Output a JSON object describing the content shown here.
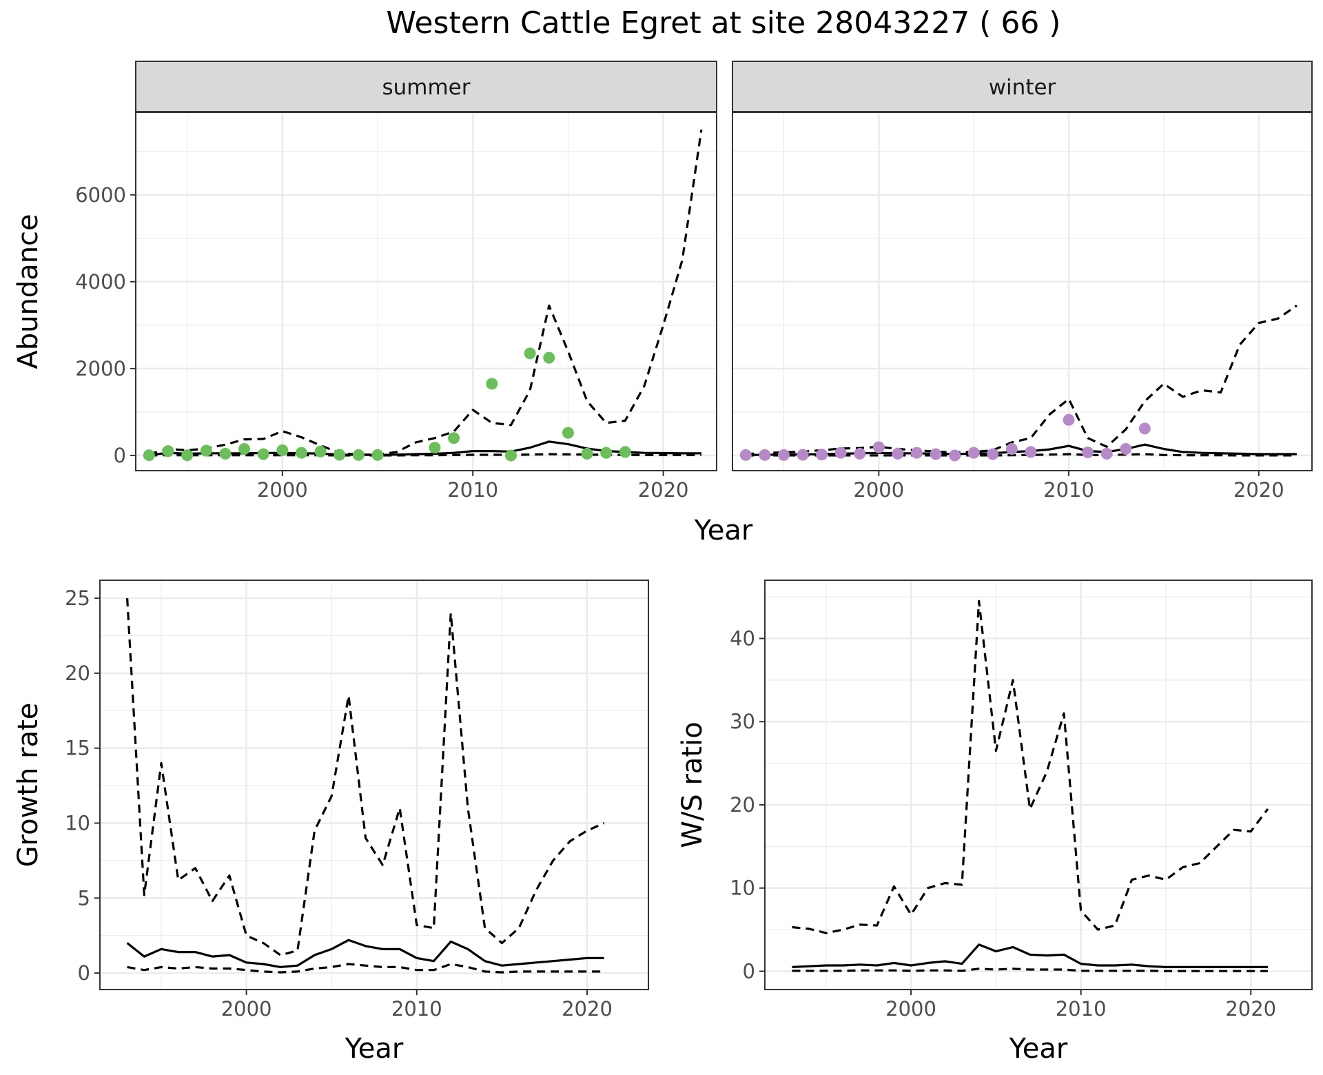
{
  "title": "Western Cattle Egret at site 28043227 ( 66 )",
  "colors": {
    "summer_points": "#6bbf59",
    "winter_points": "#b68ac9",
    "line": "#000000",
    "strip_fill": "#d9d9d9",
    "grid": "#ebebeb"
  },
  "chart_data": [
    {
      "id": "abundance",
      "type": "line",
      "facets": [
        "summer",
        "winter"
      ],
      "xlabel": "Year",
      "ylabel": "Abundance",
      "xlim": [
        1992.3,
        2022.8
      ],
      "ylim": [
        -350,
        7900
      ],
      "xticks": [
        2000,
        2010,
        2020
      ],
      "yticks": [
        0,
        2000,
        4000,
        6000
      ],
      "grid": true,
      "panels": [
        {
          "facet": "summer",
          "point_color": "#6bbf59",
          "points": {
            "x": [
              1993,
              1994,
              1995,
              1996,
              1997,
              1998,
              1999,
              2000,
              2001,
              2002,
              2003,
              2004,
              2005,
              2008,
              2009,
              2011,
              2012,
              2013,
              2014,
              2015,
              2016,
              2017,
              2018
            ],
            "y": [
              5,
              100,
              5,
              110,
              40,
              150,
              30,
              120,
              60,
              90,
              15,
              10,
              10,
              180,
              400,
              1650,
              0,
              2350,
              2250,
              520,
              40,
              60,
              80
            ]
          },
          "series": [
            {
              "style": "solid",
              "x": [
                1993,
                1994,
                1995,
                1996,
                1997,
                1998,
                1999,
                2000,
                2001,
                2002,
                2003,
                2004,
                2005,
                2006,
                2007,
                2008,
                2009,
                2010,
                2011,
                2012,
                2013,
                2014,
                2015,
                2016,
                2017,
                2018,
                2019,
                2020,
                2021,
                2022
              ],
              "y": [
                10,
                60,
                40,
                50,
                50,
                50,
                55,
                60,
                50,
                45,
                20,
                15,
                10,
                20,
                30,
                40,
                60,
                100,
                100,
                90,
                180,
                320,
                260,
                160,
                100,
                80,
                60,
                55,
                50,
                50
              ]
            },
            {
              "style": "dashed",
              "x": [
                1993,
                1994,
                1995,
                1996,
                1997,
                1998,
                1999,
                2000,
                2001,
                2002,
                2003,
                2004,
                2005,
                2006,
                2007,
                2008,
                2009,
                2010,
                2011,
                2012,
                2013,
                2014,
                2015,
                2016,
                2017,
                2018,
                2019,
                2020,
                2021,
                2022
              ],
              "y": [
                30,
                150,
                120,
                160,
                250,
                370,
                380,
                560,
                420,
                230,
                60,
                20,
                20,
                80,
                300,
                400,
                550,
                1050,
                750,
                700,
                1500,
                3450,
                2400,
                1250,
                750,
                800,
                1600,
                3000,
                4500,
                7500
              ]
            },
            {
              "style": "dashed",
              "x": [
                1993,
                1994,
                1995,
                1996,
                1997,
                1998,
                1999,
                2000,
                2001,
                2002,
                2003,
                2004,
                2005,
                2006,
                2007,
                2008,
                2009,
                2010,
                2011,
                2012,
                2013,
                2014,
                2015,
                2016,
                2017,
                2018,
                2019,
                2020,
                2021,
                2022
              ],
              "y": [
                0,
                5,
                5,
                5,
                5,
                5,
                5,
                5,
                5,
                5,
                0,
                0,
                0,
                0,
                5,
                5,
                10,
                15,
                15,
                15,
                20,
                30,
                25,
                20,
                15,
                15,
                10,
                10,
                10,
                10
              ]
            }
          ]
        },
        {
          "facet": "winter",
          "point_color": "#b68ac9",
          "points": {
            "x": [
              1993,
              1994,
              1995,
              1996,
              1997,
              1998,
              1999,
              2000,
              2001,
              2002,
              2003,
              2004,
              2005,
              2006,
              2007,
              2008,
              2010,
              2011,
              2012,
              2013,
              2014
            ],
            "y": [
              10,
              10,
              10,
              15,
              20,
              60,
              40,
              190,
              40,
              60,
              30,
              0,
              60,
              30,
              150,
              80,
              820,
              70,
              40,
              150,
              620
            ]
          },
          "series": [
            {
              "style": "solid",
              "x": [
                1993,
                1994,
                1995,
                1996,
                1997,
                1998,
                1999,
                2000,
                2001,
                2002,
                2003,
                2004,
                2005,
                2006,
                2007,
                2008,
                2009,
                2010,
                2011,
                2012,
                2013,
                2014,
                2015,
                2016,
                2017,
                2018,
                2019,
                2020,
                2021,
                2022
              ],
              "y": [
                10,
                15,
                20,
                25,
                30,
                40,
                50,
                60,
                50,
                50,
                40,
                35,
                40,
                50,
                80,
                100,
                140,
                220,
                100,
                80,
                150,
                250,
                150,
                80,
                60,
                50,
                40,
                30,
                30,
                30
              ]
            },
            {
              "style": "dashed",
              "x": [
                1993,
                1994,
                1995,
                1996,
                1997,
                1998,
                1999,
                2000,
                2001,
                2002,
                2003,
                2004,
                2005,
                2006,
                2007,
                2008,
                2009,
                2010,
                2011,
                2012,
                2013,
                2014,
                2015,
                2016,
                2017,
                2018,
                2019,
                2020,
                2021,
                2022
              ],
              "y": [
                30,
                60,
                70,
                90,
                120,
                160,
                170,
                200,
                150,
                120,
                90,
                70,
                80,
                120,
                300,
                400,
                950,
                1300,
                400,
                200,
                600,
                1250,
                1650,
                1350,
                1500,
                1450,
                2550,
                3050,
                3150,
                3450
              ]
            },
            {
              "style": "dashed",
              "x": [
                1993,
                1994,
                1995,
                1996,
                1997,
                1998,
                1999,
                2000,
                2001,
                2002,
                2003,
                2004,
                2005,
                2006,
                2007,
                2008,
                2009,
                2010,
                2011,
                2012,
                2013,
                2014,
                2015,
                2016,
                2017,
                2018,
                2019,
                2020,
                2021,
                2022
              ],
              "y": [
                0,
                0,
                0,
                0,
                0,
                0,
                0,
                0,
                0,
                0,
                0,
                0,
                0,
                0,
                5,
                10,
                20,
                30,
                10,
                10,
                20,
                30,
                10,
                5,
                5,
                5,
                0,
                0,
                0,
                0
              ]
            }
          ]
        }
      ]
    },
    {
      "id": "growth",
      "type": "line",
      "xlabel": "Year",
      "ylabel": "Growth rate",
      "xlim": [
        1991.4,
        2023.6
      ],
      "ylim": [
        -1.1,
        26.2
      ],
      "xticks": [
        2000,
        2010,
        2020
      ],
      "yticks": [
        0,
        5,
        10,
        15,
        20,
        25
      ],
      "grid": true,
      "series": [
        {
          "style": "solid",
          "x": [
            1993,
            1994,
            1995,
            1996,
            1997,
            1998,
            1999,
            2000,
            2001,
            2002,
            2003,
            2004,
            2005,
            2006,
            2007,
            2008,
            2009,
            2010,
            2011,
            2012,
            2013,
            2014,
            2015,
            2016,
            2017,
            2018,
            2019,
            2020,
            2021
          ],
          "y": [
            2.0,
            1.1,
            1.6,
            1.4,
            1.4,
            1.1,
            1.2,
            0.7,
            0.6,
            0.4,
            0.5,
            1.2,
            1.6,
            2.2,
            1.8,
            1.6,
            1.6,
            1.0,
            0.8,
            2.1,
            1.6,
            0.8,
            0.5,
            0.6,
            0.7,
            0.8,
            0.9,
            1.0,
            1.0
          ]
        },
        {
          "style": "dashed",
          "x": [
            1993,
            1994,
            1995,
            1996,
            1997,
            1998,
            1999,
            2000,
            2001,
            2002,
            2003,
            2004,
            2005,
            2006,
            2007,
            2008,
            2009,
            2010,
            2011,
            2012,
            2013,
            2014,
            2015,
            2016,
            2017,
            2018,
            2019,
            2020,
            2021
          ],
          "y": [
            25.0,
            5.2,
            14.0,
            6.2,
            7.0,
            4.8,
            6.5,
            2.5,
            2.0,
            1.2,
            1.5,
            9.5,
            11.8,
            18.5,
            9.0,
            7.2,
            11.0,
            3.2,
            3.0,
            24.0,
            11.0,
            3.0,
            2.0,
            3.0,
            5.5,
            7.5,
            8.8,
            9.5,
            10.0
          ]
        },
        {
          "style": "dashed",
          "x": [
            1993,
            1994,
            1995,
            1996,
            1997,
            1998,
            1999,
            2000,
            2001,
            2002,
            2003,
            2004,
            2005,
            2006,
            2007,
            2008,
            2009,
            2010,
            2011,
            2012,
            2013,
            2014,
            2015,
            2016,
            2017,
            2018,
            2019,
            2020,
            2021
          ],
          "y": [
            0.4,
            0.2,
            0.4,
            0.3,
            0.4,
            0.3,
            0.3,
            0.2,
            0.1,
            0.05,
            0.1,
            0.3,
            0.4,
            0.6,
            0.5,
            0.4,
            0.4,
            0.2,
            0.2,
            0.6,
            0.4,
            0.1,
            0.05,
            0.1,
            0.1,
            0.1,
            0.1,
            0.1,
            0.1
          ]
        }
      ]
    },
    {
      "id": "ratio",
      "type": "line",
      "xlabel": "Year",
      "ylabel": "W/S ratio",
      "xlim": [
        1991.4,
        2023.6
      ],
      "ylim": [
        -2.2,
        47
      ],
      "xticks": [
        2000,
        2010,
        2020
      ],
      "yticks": [
        0,
        10,
        20,
        30,
        40
      ],
      "grid": true,
      "series": [
        {
          "style": "solid",
          "x": [
            1993,
            1994,
            1995,
            1996,
            1997,
            1998,
            1999,
            2000,
            2001,
            2002,
            2003,
            2004,
            2005,
            2006,
            2007,
            2008,
            2009,
            2010,
            2011,
            2012,
            2013,
            2014,
            2015,
            2016,
            2017,
            2018,
            2019,
            2020,
            2021
          ],
          "y": [
            0.5,
            0.6,
            0.7,
            0.7,
            0.8,
            0.7,
            1.0,
            0.7,
            1.0,
            1.2,
            0.9,
            3.2,
            2.4,
            2.9,
            2.0,
            1.9,
            2.0,
            0.9,
            0.7,
            0.7,
            0.8,
            0.6,
            0.5,
            0.5,
            0.5,
            0.5,
            0.5,
            0.5,
            0.5
          ]
        },
        {
          "style": "dashed",
          "x": [
            1993,
            1994,
            1995,
            1996,
            1997,
            1998,
            1999,
            2000,
            2001,
            2002,
            2003,
            2004,
            2005,
            2006,
            2007,
            2008,
            2009,
            2010,
            2011,
            2012,
            2013,
            2014,
            2015,
            2016,
            2017,
            2018,
            2019,
            2020,
            2021
          ],
          "y": [
            5.3,
            5.1,
            4.6,
            5.0,
            5.6,
            5.5,
            10.2,
            6.8,
            10.0,
            10.6,
            10.4,
            44.5,
            26.5,
            35.0,
            19.5,
            24.0,
            31.0,
            7.3,
            5.0,
            5.5,
            11.0,
            11.5,
            11.0,
            12.5,
            13.0,
            15.0,
            17.0,
            16.8,
            19.5
          ]
        },
        {
          "style": "dashed",
          "x": [
            1993,
            1994,
            1995,
            1996,
            1997,
            1998,
            1999,
            2000,
            2001,
            2002,
            2003,
            2004,
            2005,
            2006,
            2007,
            2008,
            2009,
            2010,
            2011,
            2012,
            2013,
            2014,
            2015,
            2016,
            2017,
            2018,
            2019,
            2020,
            2021
          ],
          "y": [
            0.05,
            0.05,
            0.05,
            0.05,
            0.1,
            0.1,
            0.1,
            0.05,
            0.1,
            0.1,
            0.05,
            0.3,
            0.2,
            0.3,
            0.2,
            0.2,
            0.2,
            0.05,
            0.05,
            0.05,
            0.05,
            0.05,
            0.02,
            0.02,
            0.02,
            0.02,
            0.02,
            0.02,
            0.02
          ]
        }
      ]
    }
  ]
}
